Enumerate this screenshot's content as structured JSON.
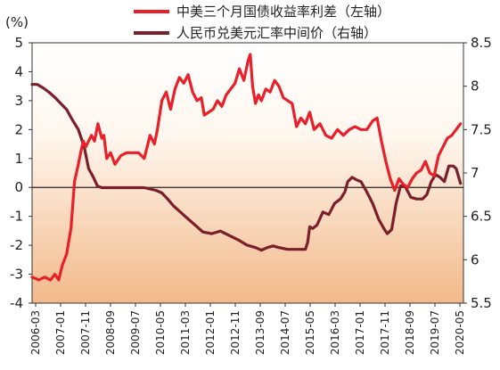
{
  "chart_data": {
    "type": "line",
    "title": "",
    "left_axis": {
      "label": "(%)",
      "min": -4,
      "max": 5,
      "ticks": [
        5,
        4,
        3,
        2,
        1,
        0,
        -1,
        -2,
        -3,
        -4
      ]
    },
    "right_axis": {
      "label": "",
      "min": 5.5,
      "max": 8.5,
      "ticks": [
        "8.5",
        "8",
        "7.5",
        "7",
        "6.5",
        "6",
        "5.5"
      ]
    },
    "x_tick_labels": [
      "2006-03",
      "2007-01",
      "2007-11",
      "2008-09",
      "2009-07",
      "2010-05",
      "2011-03",
      "2012-01",
      "2012-11",
      "2013-09",
      "2014-07",
      "2015-05",
      "2016-03",
      "2017-01",
      "2017-11",
      "2018-09",
      "2019-07",
      "2020-05"
    ],
    "legend_position": "top",
    "colors": {
      "spread": "#e8202a",
      "fx": "#7a1f2b",
      "bg_top": "#ffffff",
      "bg_bottom": "#f2b98a"
    },
    "series": [
      {
        "name": "中美三个月国债收益率利差（左轴）",
        "axis": "left",
        "x": [
          2006.17,
          2006.4,
          2006.6,
          2006.8,
          2006.95,
          2007.08,
          2007.2,
          2007.35,
          2007.5,
          2007.62,
          2007.75,
          2007.85,
          2007.92,
          2008.0,
          2008.1,
          2008.2,
          2008.3,
          2008.42,
          2008.55,
          2008.62,
          2008.72,
          2008.85,
          2009.0,
          2009.2,
          2009.4,
          2009.6,
          2009.8,
          2010.0,
          2010.2,
          2010.35,
          2010.45,
          2010.6,
          2010.75,
          2010.9,
          2011.05,
          2011.2,
          2011.35,
          2011.5,
          2011.65,
          2011.8,
          2011.95,
          2012.05,
          2012.2,
          2012.35,
          2012.5,
          2012.65,
          2012.8,
          2012.95,
          2013.1,
          2013.25,
          2013.4,
          2013.55,
          2013.62,
          2013.7,
          2013.8,
          2013.9,
          2014.0,
          2014.15,
          2014.3,
          2014.45,
          2014.6,
          2014.75,
          2014.9,
          2015.05,
          2015.2,
          2015.35,
          2015.5,
          2015.65,
          2015.8,
          2016.0,
          2016.2,
          2016.4,
          2016.6,
          2016.8,
          2017.0,
          2017.2,
          2017.4,
          2017.6,
          2017.8,
          2017.95,
          2018.1,
          2018.25,
          2018.4,
          2018.55,
          2018.7,
          2018.85,
          2019.0,
          2019.15,
          2019.3,
          2019.45,
          2019.6,
          2019.75,
          2019.9,
          2020.05,
          2020.2,
          2020.35,
          2020.5,
          2020.65,
          2020.8
        ],
        "values": [
          -3.1,
          -3.2,
          -3.1,
          -3.2,
          -3.0,
          -3.2,
          -2.7,
          -2.3,
          -1.4,
          0.2,
          0.8,
          1.3,
          1.6,
          1.4,
          1.6,
          1.8,
          1.6,
          2.2,
          1.7,
          1.8,
          1.0,
          1.2,
          0.8,
          1.1,
          1.2,
          1.2,
          1.2,
          1.0,
          1.8,
          1.5,
          2.0,
          3.0,
          3.3,
          2.7,
          3.4,
          3.8,
          3.6,
          3.9,
          3.3,
          3.0,
          3.1,
          2.5,
          2.6,
          2.7,
          3.0,
          2.8,
          3.2,
          3.4,
          3.6,
          4.1,
          3.7,
          4.4,
          4.6,
          3.5,
          2.9,
          3.2,
          3.0,
          3.4,
          3.3,
          3.7,
          3.5,
          3.1,
          3.0,
          2.9,
          2.1,
          2.4,
          2.2,
          2.6,
          2.0,
          2.2,
          1.8,
          1.7,
          2.0,
          1.8,
          2.0,
          2.1,
          2.0,
          2.0,
          2.3,
          2.4,
          1.6,
          0.9,
          0.3,
          -0.1,
          0.3,
          0.1,
          0.0,
          0.3,
          0.5,
          0.6,
          0.9,
          0.5,
          0.4,
          1.1,
          1.4,
          1.7,
          1.8,
          2.0,
          2.2
        ]
      },
      {
        "name": "人民币兑美元汇率中间价（右轴）",
        "axis": "right",
        "x": [
          2006.17,
          2006.35,
          2006.55,
          2006.75,
          2006.95,
          2007.15,
          2007.35,
          2007.55,
          2007.75,
          2007.95,
          2008.1,
          2008.25,
          2008.4,
          2008.55,
          2008.75,
          2009.0,
          2009.5,
          2010.0,
          2010.4,
          2010.6,
          2010.8,
          2011.0,
          2011.2,
          2011.4,
          2011.6,
          2011.8,
          2012.0,
          2012.3,
          2012.6,
          2012.9,
          2013.2,
          2013.5,
          2013.8,
          2014.0,
          2014.2,
          2014.4,
          2014.6,
          2014.9,
          2015.2,
          2015.5,
          2015.58,
          2015.65,
          2015.75,
          2015.9,
          2016.1,
          2016.3,
          2016.5,
          2016.7,
          2016.85,
          2016.95,
          2017.1,
          2017.25,
          2017.4,
          2017.6,
          2017.8,
          2018.0,
          2018.2,
          2018.3,
          2018.45,
          2018.6,
          2018.75,
          2018.9,
          2019.1,
          2019.3,
          2019.5,
          2019.65,
          2019.8,
          2019.95,
          2020.1,
          2020.25,
          2020.4,
          2020.55,
          2020.65,
          2020.8
        ],
        "values": [
          8.02,
          8.02,
          7.98,
          7.93,
          7.87,
          7.8,
          7.73,
          7.61,
          7.5,
          7.3,
          7.05,
          6.96,
          6.85,
          6.83,
          6.83,
          6.83,
          6.83,
          6.83,
          6.8,
          6.77,
          6.7,
          6.62,
          6.56,
          6.5,
          6.44,
          6.38,
          6.32,
          6.3,
          6.33,
          6.28,
          6.23,
          6.17,
          6.14,
          6.11,
          6.14,
          6.16,
          6.14,
          6.12,
          6.12,
          6.12,
          6.2,
          6.38,
          6.36,
          6.4,
          6.55,
          6.52,
          6.65,
          6.7,
          6.78,
          6.9,
          6.95,
          6.92,
          6.9,
          6.78,
          6.65,
          6.47,
          6.35,
          6.3,
          6.35,
          6.65,
          6.85,
          6.85,
          6.72,
          6.7,
          6.7,
          6.75,
          6.9,
          6.98,
          6.95,
          6.9,
          7.08,
          7.08,
          7.05,
          6.88
        ]
      }
    ]
  }
}
